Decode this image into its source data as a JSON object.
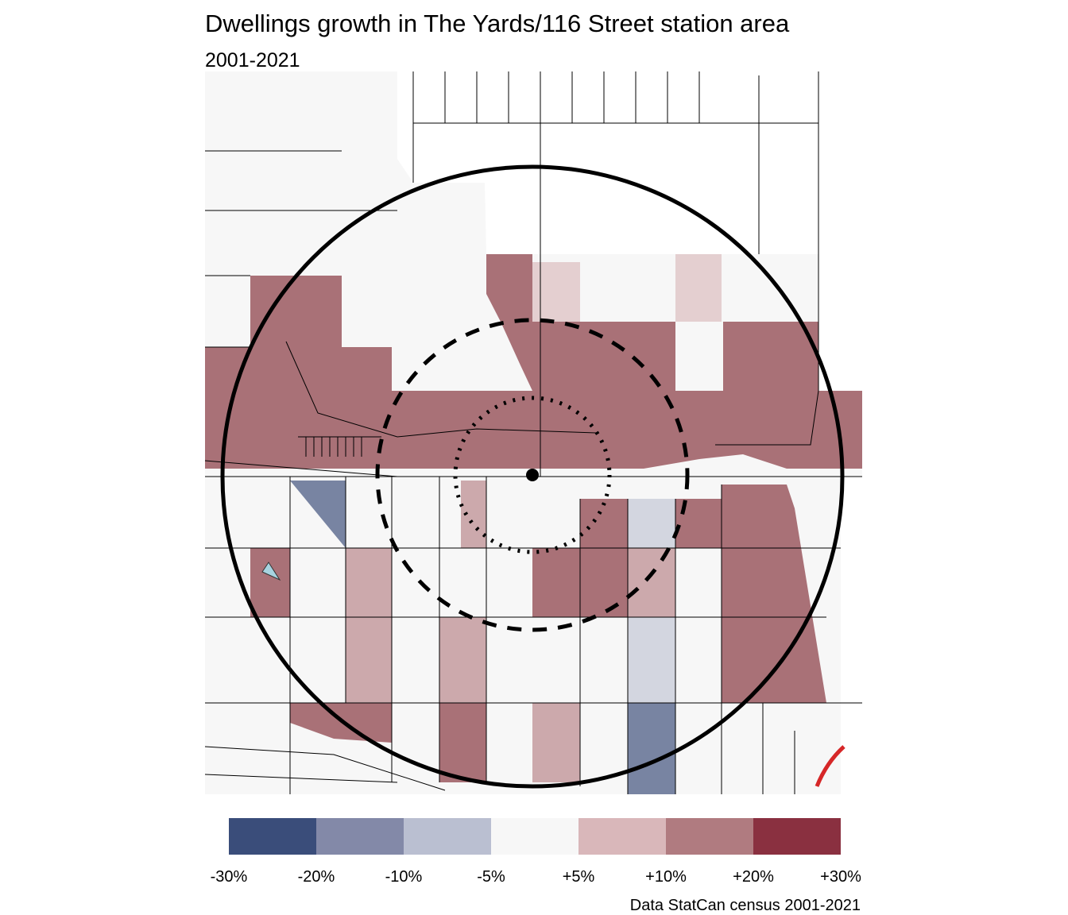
{
  "header": {
    "title": "Dwellings growth in The Yards/116 Street station area",
    "subtitle": "2001-2021"
  },
  "legend": {
    "colors": [
      "#3a4d7a",
      "#8389a8",
      "#babfd1",
      "#f7f7f7",
      "#d9b7ba",
      "#b07b80",
      "#8a3040"
    ],
    "labels": [
      "-30%",
      "-20%",
      "-10%",
      "-5%",
      "+5%",
      "+10%",
      "+20%",
      "+30%"
    ]
  },
  "caption": "Data StatCan census 2001-2021"
}
